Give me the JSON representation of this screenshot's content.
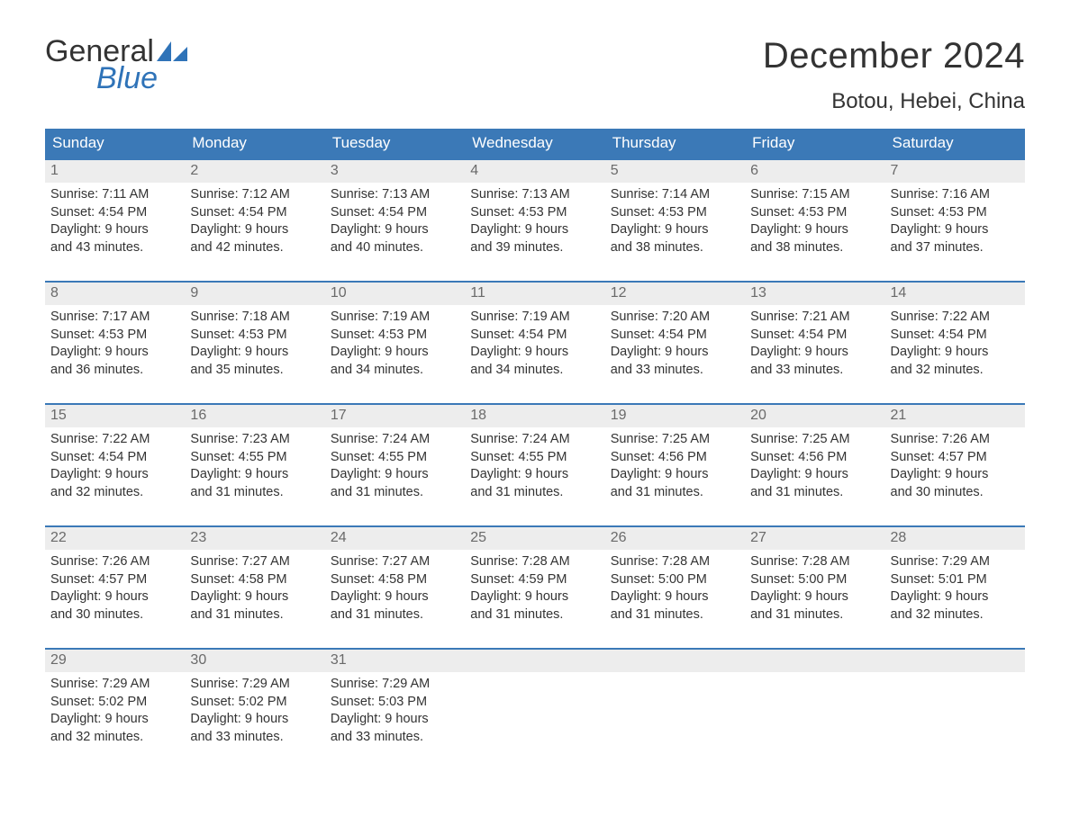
{
  "brand": {
    "word1": "General",
    "word2": "Blue",
    "word1_color": "#333333",
    "word2_color": "#2f73b8",
    "sail_color": "#2f73b8"
  },
  "title": "December 2024",
  "location": "Botou, Hebei, China",
  "colors": {
    "header_bg": "#3b79b7",
    "header_text": "#ffffff",
    "band_bg": "#ededed",
    "band_text": "#6a6a6a",
    "rule": "#3b79b7",
    "body_text": "#333333",
    "page_bg": "#ffffff"
  },
  "typography": {
    "title_fontsize": 40,
    "location_fontsize": 24,
    "dow_fontsize": 17,
    "daynum_fontsize": 16,
    "body_fontsize": 14.5
  },
  "days_of_week": [
    "Sunday",
    "Monday",
    "Tuesday",
    "Wednesday",
    "Thursday",
    "Friday",
    "Saturday"
  ],
  "weeks": [
    [
      {
        "n": "1",
        "sunrise": "7:11 AM",
        "sunset": "4:54 PM",
        "dl1": "Daylight: 9 hours",
        "dl2": "and 43 minutes."
      },
      {
        "n": "2",
        "sunrise": "7:12 AM",
        "sunset": "4:54 PM",
        "dl1": "Daylight: 9 hours",
        "dl2": "and 42 minutes."
      },
      {
        "n": "3",
        "sunrise": "7:13 AM",
        "sunset": "4:54 PM",
        "dl1": "Daylight: 9 hours",
        "dl2": "and 40 minutes."
      },
      {
        "n": "4",
        "sunrise": "7:13 AM",
        "sunset": "4:53 PM",
        "dl1": "Daylight: 9 hours",
        "dl2": "and 39 minutes."
      },
      {
        "n": "5",
        "sunrise": "7:14 AM",
        "sunset": "4:53 PM",
        "dl1": "Daylight: 9 hours",
        "dl2": "and 38 minutes."
      },
      {
        "n": "6",
        "sunrise": "7:15 AM",
        "sunset": "4:53 PM",
        "dl1": "Daylight: 9 hours",
        "dl2": "and 38 minutes."
      },
      {
        "n": "7",
        "sunrise": "7:16 AM",
        "sunset": "4:53 PM",
        "dl1": "Daylight: 9 hours",
        "dl2": "and 37 minutes."
      }
    ],
    [
      {
        "n": "8",
        "sunrise": "7:17 AM",
        "sunset": "4:53 PM",
        "dl1": "Daylight: 9 hours",
        "dl2": "and 36 minutes."
      },
      {
        "n": "9",
        "sunrise": "7:18 AM",
        "sunset": "4:53 PM",
        "dl1": "Daylight: 9 hours",
        "dl2": "and 35 minutes."
      },
      {
        "n": "10",
        "sunrise": "7:19 AM",
        "sunset": "4:53 PM",
        "dl1": "Daylight: 9 hours",
        "dl2": "and 34 minutes."
      },
      {
        "n": "11",
        "sunrise": "7:19 AM",
        "sunset": "4:54 PM",
        "dl1": "Daylight: 9 hours",
        "dl2": "and 34 minutes."
      },
      {
        "n": "12",
        "sunrise": "7:20 AM",
        "sunset": "4:54 PM",
        "dl1": "Daylight: 9 hours",
        "dl2": "and 33 minutes."
      },
      {
        "n": "13",
        "sunrise": "7:21 AM",
        "sunset": "4:54 PM",
        "dl1": "Daylight: 9 hours",
        "dl2": "and 33 minutes."
      },
      {
        "n": "14",
        "sunrise": "7:22 AM",
        "sunset": "4:54 PM",
        "dl1": "Daylight: 9 hours",
        "dl2": "and 32 minutes."
      }
    ],
    [
      {
        "n": "15",
        "sunrise": "7:22 AM",
        "sunset": "4:54 PM",
        "dl1": "Daylight: 9 hours",
        "dl2": "and 32 minutes."
      },
      {
        "n": "16",
        "sunrise": "7:23 AM",
        "sunset": "4:55 PM",
        "dl1": "Daylight: 9 hours",
        "dl2": "and 31 minutes."
      },
      {
        "n": "17",
        "sunrise": "7:24 AM",
        "sunset": "4:55 PM",
        "dl1": "Daylight: 9 hours",
        "dl2": "and 31 minutes."
      },
      {
        "n": "18",
        "sunrise": "7:24 AM",
        "sunset": "4:55 PM",
        "dl1": "Daylight: 9 hours",
        "dl2": "and 31 minutes."
      },
      {
        "n": "19",
        "sunrise": "7:25 AM",
        "sunset": "4:56 PM",
        "dl1": "Daylight: 9 hours",
        "dl2": "and 31 minutes."
      },
      {
        "n": "20",
        "sunrise": "7:25 AM",
        "sunset": "4:56 PM",
        "dl1": "Daylight: 9 hours",
        "dl2": "and 31 minutes."
      },
      {
        "n": "21",
        "sunrise": "7:26 AM",
        "sunset": "4:57 PM",
        "dl1": "Daylight: 9 hours",
        "dl2": "and 30 minutes."
      }
    ],
    [
      {
        "n": "22",
        "sunrise": "7:26 AM",
        "sunset": "4:57 PM",
        "dl1": "Daylight: 9 hours",
        "dl2": "and 30 minutes."
      },
      {
        "n": "23",
        "sunrise": "7:27 AM",
        "sunset": "4:58 PM",
        "dl1": "Daylight: 9 hours",
        "dl2": "and 31 minutes."
      },
      {
        "n": "24",
        "sunrise": "7:27 AM",
        "sunset": "4:58 PM",
        "dl1": "Daylight: 9 hours",
        "dl2": "and 31 minutes."
      },
      {
        "n": "25",
        "sunrise": "7:28 AM",
        "sunset": "4:59 PM",
        "dl1": "Daylight: 9 hours",
        "dl2": "and 31 minutes."
      },
      {
        "n": "26",
        "sunrise": "7:28 AM",
        "sunset": "5:00 PM",
        "dl1": "Daylight: 9 hours",
        "dl2": "and 31 minutes."
      },
      {
        "n": "27",
        "sunrise": "7:28 AM",
        "sunset": "5:00 PM",
        "dl1": "Daylight: 9 hours",
        "dl2": "and 31 minutes."
      },
      {
        "n": "28",
        "sunrise": "7:29 AM",
        "sunset": "5:01 PM",
        "dl1": "Daylight: 9 hours",
        "dl2": "and 32 minutes."
      }
    ],
    [
      {
        "n": "29",
        "sunrise": "7:29 AM",
        "sunset": "5:02 PM",
        "dl1": "Daylight: 9 hours",
        "dl2": "and 32 minutes."
      },
      {
        "n": "30",
        "sunrise": "7:29 AM",
        "sunset": "5:02 PM",
        "dl1": "Daylight: 9 hours",
        "dl2": "and 33 minutes."
      },
      {
        "n": "31",
        "sunrise": "7:29 AM",
        "sunset": "5:03 PM",
        "dl1": "Daylight: 9 hours",
        "dl2": "and 33 minutes."
      },
      {
        "empty": true
      },
      {
        "empty": true
      },
      {
        "empty": true
      },
      {
        "empty": true
      }
    ]
  ],
  "labels": {
    "sunrise_prefix": "Sunrise: ",
    "sunset_prefix": "Sunset: "
  }
}
